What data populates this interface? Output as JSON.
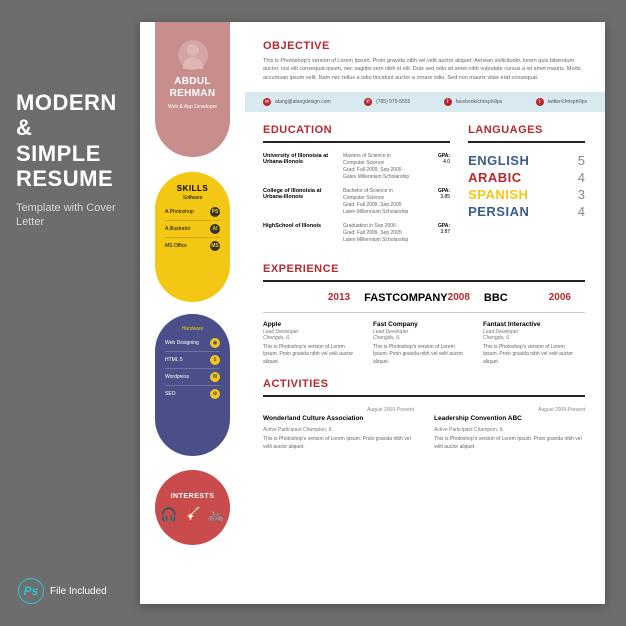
{
  "promo": {
    "title_l1": "MODERN &",
    "title_l2": "SIMPLE",
    "title_l3": "RESUME",
    "subtitle": "Template with Cover Letter"
  },
  "ps": {
    "icon": "Ps",
    "label": "File Included"
  },
  "colors": {
    "bg": "#6d6d6d",
    "accent_red": "#b8282f",
    "tab": "#c88e8e",
    "yellow": "#f5c715",
    "navy": "#4a4f8a",
    "circle_red": "#c94b4b",
    "contact_bar": "#d9e9f0"
  },
  "name": {
    "first": "ABDUL",
    "last": "REHMAN",
    "role": "Web & App Developer"
  },
  "objective": {
    "title": "OBJECTIVE",
    "text": "This is Photoshop's version of Lorem Ipsum. Proin gravida nibh vel velit auctor aliquet. Aenean sollicitudin, lorem quis bibendum auctor, nisi elit consequat ipsum, nec sagittis sem nibh id elit. Duis sed odio sit amet nibh vulputate cursus a sit amet mauris. Morbi accumsan ipsum velit. Nam nec tellus a odio tincidunt auctor a ornare odio. Sed non mauris vitae erat consequat."
  },
  "contact": {
    "email": "atang@atangdesign.com",
    "phone": "(785) 979-5555",
    "fb": "facebook/chrisphilips",
    "tw": "twitter/chrisphilips"
  },
  "education": {
    "title": "EDUCATION",
    "rows": [
      {
        "school": "University of Illonoisia at Urbana-Illonois",
        "degree": "Masters of Science in Computer Science",
        "dates": "Grad: Fall 2009, Sep 2005",
        "honor": "Gates Millennium Scholarship",
        "gpa_label": "GPA:",
        "gpa": "4.0"
      },
      {
        "school": "College of Illonoisia at Urbana-Illonois",
        "degree": "Bachelor of Science in Computer Science",
        "dates": "Grad: Fall 2009, Sep 2005",
        "honor": "Laten Millennium Scholarship",
        "gpa_label": "GPA:",
        "gpa": "3.85"
      },
      {
        "school": "HighSchool of Illonois",
        "degree": "Graduation in Sep 2006",
        "dates": "Grad: Fall 2009, Sep 2005",
        "honor": "Laten Millennium Scholarship",
        "gpa_label": "GPA:",
        "gpa": "3.87"
      }
    ]
  },
  "languages": {
    "title": "LANGUAGES",
    "rows": [
      {
        "name": "ENGLISH",
        "score": "5",
        "color": "#3b5c8f"
      },
      {
        "name": "ARABIC",
        "score": "4",
        "color": "#b8282f"
      },
      {
        "name": "SPANISH",
        "score": "3",
        "color": "#f5c715"
      },
      {
        "name": "PERSIAN",
        "score": "4",
        "color": "#3b5c8f"
      }
    ]
  },
  "skills": {
    "title": "SKILLS",
    "soft_label": "Software",
    "software": [
      {
        "name": "A.Photoshop",
        "ic": "PS"
      },
      {
        "name": "A.Illustrator",
        "ic": "AI"
      },
      {
        "name": "MS Office",
        "ic": "MS"
      }
    ],
    "hard_label": "Hardware",
    "hardware": [
      {
        "name": "Web Designing",
        "ic": "◉"
      },
      {
        "name": "HTML 5",
        "ic": "5"
      },
      {
        "name": "Wordpress",
        "ic": "W"
      },
      {
        "name": "SEO",
        "ic": "⚙"
      }
    ]
  },
  "interests": {
    "title": "INTERESTS"
  },
  "experience": {
    "title": "EXPERIENCE",
    "cols": [
      {
        "logo": "",
        "year": "2013",
        "company": "Apple",
        "role": "Lead Developer",
        "loc": "Chengdu, IL",
        "desc": "This is Photoshop's version of Lorem Ipsum. Proin gravida nibh vel velit auctor aliquet."
      },
      {
        "logo": "FASTCOMPANY",
        "year": "2008",
        "company": "Fast Company",
        "role": "Lead Developer",
        "loc": "Chengdu, IL",
        "desc": "This is Photoshop's version of Lorem Ipsum. Proin gravida nibh vel velit auctor aliquet."
      },
      {
        "logo": "BBC",
        "year": "2006",
        "company": "Fantast Interactive",
        "role": "Lead Developer",
        "loc": "Chengdu, IL",
        "desc": "This is Photoshop's version of Lorem Ipsum. Proin gravida nibh vel velit auctor aliquet."
      }
    ]
  },
  "activities": {
    "title": "ACTIVITIES",
    "cols": [
      {
        "title": "Wonderland Culture Association",
        "date": "August 2009-Present",
        "meta": "Active Participant\nChampion, IL",
        "desc": "This is Photoshop's version of Lorem Ipsum. Proin gravida nibh vel velit auctor aliquet."
      },
      {
        "title": "Leadership Convention ABC",
        "date": "August 2009-Present",
        "meta": "Active Participant\nChampion, IL",
        "desc": "This is Photoshop's version of Lorem Ipsum. Proin gravida nibh vel velit auctor aliquet."
      }
    ]
  }
}
